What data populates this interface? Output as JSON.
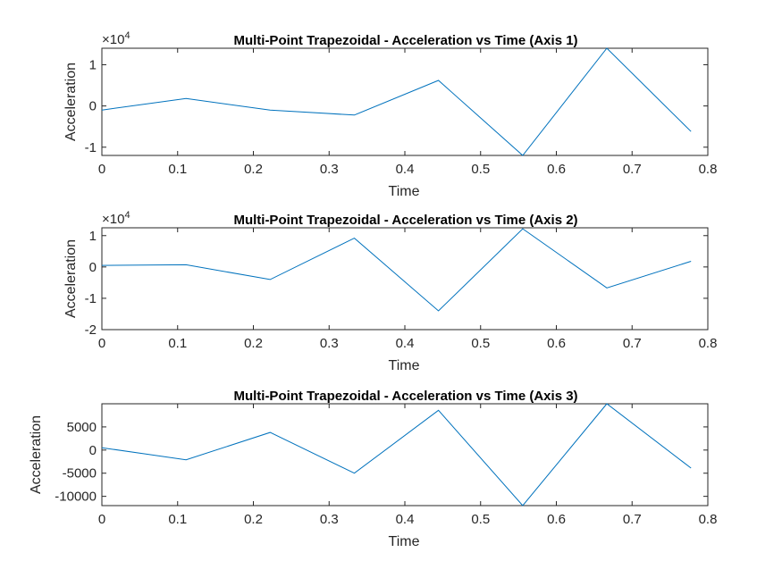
{
  "chart_data": [
    {
      "type": "line",
      "title": "Multi-Point Trapezoidal - Acceleration vs Time (Axis 1)",
      "xlabel": "Time",
      "ylabel": "Acceleration",
      "exponent_label": "×10",
      "exponent_power": "4",
      "xlim": [
        0,
        0.8
      ],
      "ylim": [
        -1.2,
        1.4
      ],
      "xticks": [
        "0",
        "0.1",
        "0.2",
        "0.3",
        "0.4",
        "0.5",
        "0.6",
        "0.7",
        "0.8"
      ],
      "yticks": [
        "-1",
        "0",
        "1"
      ],
      "ytick_values": [
        -1,
        0,
        1
      ],
      "x": [
        0,
        0.1111,
        0.2222,
        0.3333,
        0.4444,
        0.5556,
        0.6667,
        0.7778
      ],
      "y": [
        -0.1,
        0.18,
        -0.1,
        -0.22,
        0.62,
        -1.2,
        1.4,
        -0.62
      ],
      "color": "#0072bd",
      "grid": false
    },
    {
      "type": "line",
      "title": "Multi-Point Trapezoidal - Acceleration vs Time (Axis 2)",
      "xlabel": "Time",
      "ylabel": "Acceleration",
      "exponent_label": "×10",
      "exponent_power": "4",
      "xlim": [
        0,
        0.8
      ],
      "ylim": [
        -2.0,
        1.25
      ],
      "xticks": [
        "0",
        "0.1",
        "0.2",
        "0.3",
        "0.4",
        "0.5",
        "0.6",
        "0.7",
        "0.8"
      ],
      "yticks": [
        "-2",
        "-1",
        "0",
        "1"
      ],
      "ytick_values": [
        -2,
        -1,
        0,
        1
      ],
      "x": [
        0,
        0.1111,
        0.2222,
        0.3333,
        0.4444,
        0.5556,
        0.6667,
        0.7778
      ],
      "y": [
        0.05,
        0.07,
        -0.4,
        0.92,
        -1.4,
        1.22,
        -0.67,
        0.18
      ],
      "color": "#0072bd",
      "grid": false
    },
    {
      "type": "line",
      "title": "Multi-Point Trapezoidal - Acceleration vs Time (Axis 3)",
      "xlabel": "Time",
      "ylabel": "Acceleration",
      "xlim": [
        0,
        0.8
      ],
      "ylim": [
        -12000,
        10000
      ],
      "xticks": [
        "0",
        "0.1",
        "0.2",
        "0.3",
        "0.4",
        "0.5",
        "0.6",
        "0.7",
        "0.8"
      ],
      "yticks": [
        "-10000",
        "-5000",
        "0",
        "5000"
      ],
      "ytick_values": [
        -10000,
        -5000,
        0,
        5000
      ],
      "x": [
        0,
        0.1111,
        0.2222,
        0.3333,
        0.4444,
        0.5556,
        0.6667,
        0.7778
      ],
      "y": [
        500,
        -2100,
        3800,
        -5000,
        8600,
        -12000,
        10000,
        -3900
      ],
      "color": "#0072bd",
      "grid": false
    }
  ]
}
